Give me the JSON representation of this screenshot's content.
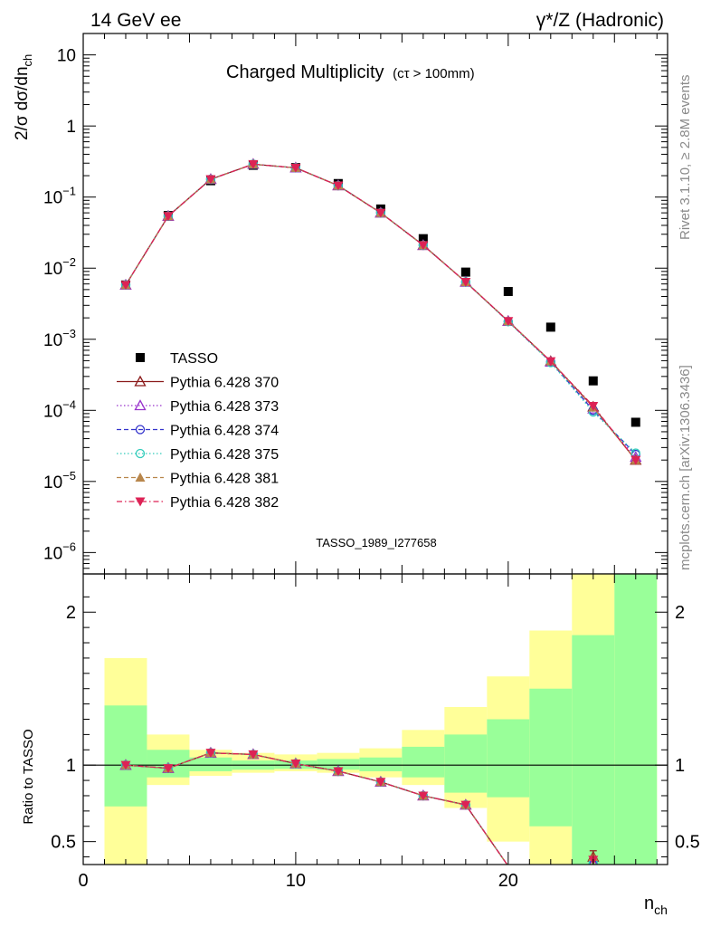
{
  "header": {
    "left": "14 GeV ee",
    "right": "γ*/Z (Hadronic)"
  },
  "side_text": {
    "rivet": "Rivet 3.1.10, ≥ 2.8M events",
    "mcplots": "mcplots.cern.ch [arXiv:1306.3436]"
  },
  "watermark": "TASSO_1989_I277658",
  "colors": {
    "data": "#000000",
    "band_inner": "#99ff99",
    "band_outer": "#ffff99"
  },
  "chart_data": [
    {
      "type": "scatter",
      "title": "Charged Multiplicity",
      "title_note": "(cτ > 100mm)",
      "ylabel": "2/σ dσ/dn",
      "ylabel_sub": "ch",
      "yscale": "log",
      "ylim": [
        5e-07,
        20
      ],
      "xlim": [
        0,
        27.5
      ],
      "ytick_labels": [
        {
          "value": 1e-06,
          "mant": "10",
          "exp": "−6"
        },
        {
          "value": 1e-05,
          "mant": "10",
          "exp": "−5"
        },
        {
          "value": 0.0001,
          "mant": "10",
          "exp": "−4"
        },
        {
          "value": 0.001,
          "mant": "10",
          "exp": "−3"
        },
        {
          "value": 0.01,
          "mant": "10",
          "exp": "−2"
        },
        {
          "value": 0.1,
          "mant": "10",
          "exp": "−1"
        },
        {
          "value": 1,
          "mant": "1",
          "exp": ""
        },
        {
          "value": 10,
          "mant": "10",
          "exp": ""
        }
      ],
      "legend_position": "left",
      "x": [
        2,
        4,
        6,
        8,
        10,
        12,
        14,
        16,
        18,
        20,
        22,
        24,
        26
      ],
      "series": [
        {
          "name": "TASSO",
          "color": "#000000",
          "marker": "square",
          "line": "none",
          "values": [
            0.0058,
            0.055,
            0.17,
            0.28,
            0.26,
            0.155,
            0.068,
            0.026,
            0.0088,
            0.0047,
            0.00148,
            0.00026,
            6.8e-05
          ]
        },
        {
          "name": "Pythia 6.428 370",
          "color": "#8b1a1a",
          "marker": "triangle-open",
          "line": "solid",
          "values": [
            0.0058,
            0.054,
            0.178,
            0.29,
            0.258,
            0.145,
            0.06,
            0.021,
            0.0064,
            0.0018,
            0.00049,
            0.000112,
            2e-05
          ]
        },
        {
          "name": "Pythia 6.428 373",
          "color": "#9933cc",
          "marker": "triangle-open",
          "line": "dotted",
          "values": [
            0.0058,
            0.054,
            0.178,
            0.29,
            0.258,
            0.145,
            0.06,
            0.021,
            0.0064,
            0.00179,
            0.00048,
            0.000105,
            2.2e-05
          ]
        },
        {
          "name": "Pythia 6.428 374",
          "color": "#3333cc",
          "marker": "circle-open",
          "line": "dashed",
          "values": [
            0.0058,
            0.054,
            0.178,
            0.29,
            0.258,
            0.145,
            0.06,
            0.021,
            0.0064,
            0.00178,
            0.00048,
            0.0001,
            2.4e-05
          ]
        },
        {
          "name": "Pythia 6.428 375",
          "color": "#33ccbb",
          "marker": "circle-open",
          "line": "dotted",
          "values": [
            0.0058,
            0.054,
            0.178,
            0.29,
            0.258,
            0.145,
            0.06,
            0.021,
            0.0064,
            0.00177,
            0.00047,
            9.5e-05,
            2.5e-05
          ]
        },
        {
          "name": "Pythia 6.428 381",
          "color": "#b8864b",
          "marker": "triangle-filled",
          "line": "dashed",
          "values": [
            0.0058,
            0.054,
            0.178,
            0.29,
            0.258,
            0.145,
            0.06,
            0.021,
            0.0064,
            0.0018,
            0.00049,
            0.00011,
            2e-05
          ]
        },
        {
          "name": "Pythia 6.428 382",
          "color": "#dd2255",
          "marker": "triangle-down-filled",
          "line": "dashdot",
          "values": [
            0.0058,
            0.054,
            0.178,
            0.29,
            0.258,
            0.145,
            0.06,
            0.021,
            0.0064,
            0.0018,
            0.00049,
            0.000115,
            2e-05
          ]
        }
      ]
    },
    {
      "type": "line",
      "ylabel": "Ratio to TASSO",
      "xlabel": "n",
      "xlabel_sub": "ch",
      "xlim": [
        0,
        27.5
      ],
      "ylim": [
        0.35,
        2.25
      ],
      "xticks": [
        0,
        10,
        20
      ],
      "yticks": [
        0.5,
        1,
        2
      ],
      "reference_line": 1,
      "bands": {
        "x_low": [
          1,
          3,
          5,
          7,
          9,
          11,
          13,
          15,
          17,
          19,
          21,
          23,
          25
        ],
        "x_high": [
          3,
          5,
          7,
          9,
          11,
          13,
          15,
          17,
          19,
          21,
          23,
          25,
          27
        ],
        "inner_low": [
          0.73,
          0.92,
          0.96,
          0.97,
          0.975,
          0.97,
          0.96,
          0.92,
          0.82,
          0.79,
          0.6,
          0.35,
          0.35
        ],
        "inner_high": [
          1.39,
          1.1,
          1.05,
          1.03,
          1.03,
          1.04,
          1.05,
          1.12,
          1.2,
          1.3,
          1.5,
          1.85,
          2.3
        ],
        "outer_low": [
          0.35,
          0.87,
          0.93,
          0.95,
          0.96,
          0.95,
          0.92,
          0.87,
          0.72,
          0.5,
          0.35,
          0.35,
          0.35
        ],
        "outer_high": [
          1.7,
          1.2,
          1.1,
          1.08,
          1.07,
          1.08,
          1.11,
          1.23,
          1.38,
          1.58,
          1.88,
          2.3,
          2.3
        ]
      },
      "series": [
        {
          "name": "Pythia 6.428 370",
          "values": [
            1.0,
            0.98,
            1.08,
            1.07,
            1.01,
            0.96,
            0.89,
            0.8,
            0.74,
            0.34,
            0.3,
            0.4,
            0.28
          ]
        },
        {
          "name": "Pythia 6.428 373",
          "values": [
            1.0,
            0.98,
            1.08,
            1.07,
            1.01,
            0.96,
            0.89,
            0.8,
            0.74,
            0.34,
            0.3,
            0.36,
            0.28
          ]
        },
        {
          "name": "Pythia 6.428 374",
          "values": [
            1.0,
            0.98,
            1.08,
            1.07,
            1.01,
            0.96,
            0.89,
            0.8,
            0.74,
            0.34,
            0.3,
            0.35,
            0.28
          ]
        },
        {
          "name": "Pythia 6.428 375",
          "values": [
            1.0,
            0.98,
            1.08,
            1.07,
            1.01,
            0.96,
            0.89,
            0.8,
            0.74,
            0.34,
            0.3,
            0.36,
            0.28
          ]
        },
        {
          "name": "Pythia 6.428 381",
          "values": [
            1.0,
            0.98,
            1.08,
            1.07,
            1.01,
            0.96,
            0.89,
            0.8,
            0.74,
            0.34,
            0.3,
            0.4,
            0.28
          ]
        },
        {
          "name": "Pythia 6.428 382",
          "values": [
            1.0,
            0.98,
            1.08,
            1.07,
            1.01,
            0.96,
            0.89,
            0.8,
            0.74,
            0.34,
            0.3,
            0.38,
            0.28
          ]
        }
      ]
    }
  ]
}
